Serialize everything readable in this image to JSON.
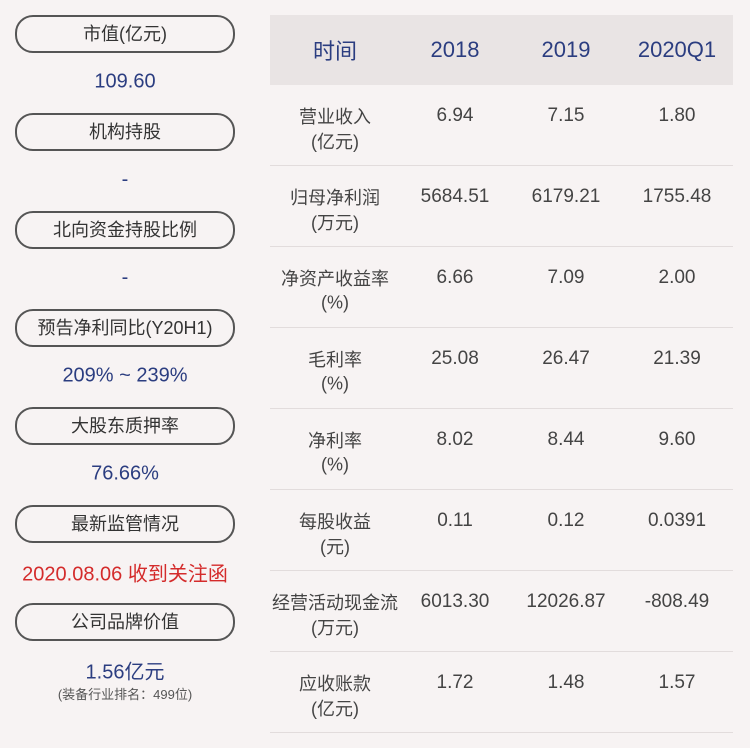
{
  "left_panel": {
    "items": [
      {
        "label": "市值(亿元)",
        "value": "109.60"
      },
      {
        "label": "机构持股",
        "value": "-"
      },
      {
        "label": "北向资金持股比例",
        "value": "-"
      },
      {
        "label": "预告净利同比(Y20H1)",
        "value": "209% ~ 239%"
      },
      {
        "label": "大股东质押率",
        "value": "76.66%"
      },
      {
        "label": "最新监管情况",
        "value": "2020.08.06 收到关注函",
        "highlight": true
      },
      {
        "label": "公司品牌价值",
        "value": "1.56亿元",
        "note": "(装备行业排名：499位)"
      }
    ]
  },
  "table": {
    "header": [
      "时间",
      "2018",
      "2019",
      "2020Q1"
    ],
    "rows": [
      {
        "label": "营业收入",
        "unit": "(亿元)",
        "cells": [
          "6.94",
          "7.15",
          "1.80"
        ]
      },
      {
        "label": "归母净利润",
        "unit": "(万元)",
        "cells": [
          "5684.51",
          "6179.21",
          "1755.48"
        ]
      },
      {
        "label": "净资产收益率",
        "unit": "(%)",
        "cells": [
          "6.66",
          "7.09",
          "2.00"
        ]
      },
      {
        "label": "毛利率",
        "unit": "(%)",
        "cells": [
          "25.08",
          "26.47",
          "21.39"
        ]
      },
      {
        "label": "净利率",
        "unit": "(%)",
        "cells": [
          "8.02",
          "8.44",
          "9.60"
        ]
      },
      {
        "label": "每股收益",
        "unit": "(元)",
        "cells": [
          "0.11",
          "0.12",
          "0.0391"
        ]
      },
      {
        "label": "经营活动现金流",
        "unit": "(万元)",
        "cells": [
          "6013.30",
          "12026.87",
          "-808.49"
        ]
      },
      {
        "label": "应收账款",
        "unit": "(亿元)",
        "cells": [
          "1.72",
          "1.48",
          "1.57"
        ]
      }
    ]
  }
}
